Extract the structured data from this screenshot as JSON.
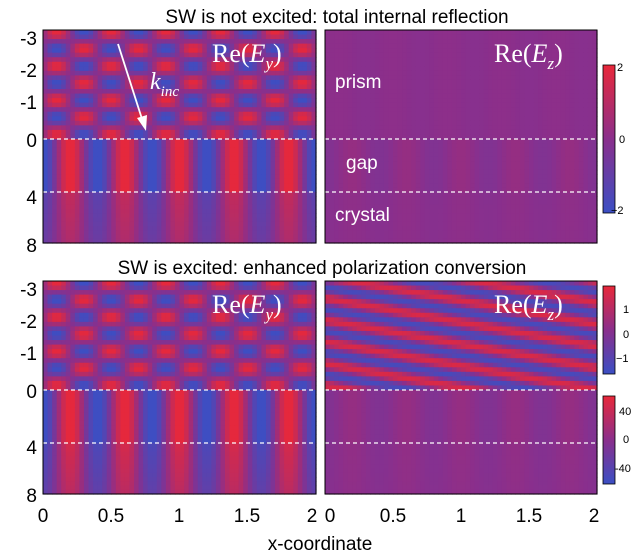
{
  "chart_data": {
    "type": "heatmap",
    "xlabel": "x-coordinate",
    "x_ticks": [
      "0",
      "0.5",
      "1",
      "1.5",
      "2"
    ],
    "y_ticks": [
      "-3",
      "-2",
      "-1",
      "0",
      "4",
      "8"
    ],
    "xlim": [
      0,
      2
    ],
    "ylim": [
      -3,
      8
    ],
    "colormap": [
      "#3b4fc4",
      "#8a2f8c",
      "#e8283a"
    ],
    "rows": [
      {
        "title": "SW is not excited: total internal reflection",
        "panels": [
          {
            "field": "Ey",
            "label_main": "Re(",
            "label_var": "E",
            "label_sub": "y",
            "label_close": ")",
            "annotation": "k",
            "annotation_sub": "inc",
            "prism_pattern": "checkerboard",
            "prism_amplitude": 1.0,
            "gap_amplitude": 1.0,
            "crystal_amplitude": 0.6
          },
          {
            "field": "Ez",
            "label_main": "Re(",
            "label_var": "E",
            "label_sub": "z",
            "label_close": ")",
            "region_labels": [
              "prism",
              "gap",
              "crystal"
            ],
            "prism_pattern": "uniform",
            "prism_amplitude": 0.05,
            "gap_amplitude": 0.12,
            "crystal_amplitude": 0.05
          }
        ],
        "colorbars": [
          {
            "ticks": [
              "2",
              "0",
              "−2"
            ]
          }
        ]
      },
      {
        "title": "SW is excited: enhanced polarization conversion",
        "panels": [
          {
            "field": "Ey",
            "label_main": "Re(",
            "label_var": "E",
            "label_sub": "y",
            "label_close": ")",
            "prism_pattern": "checkerboard",
            "prism_amplitude": 1.0,
            "gap_amplitude": 1.0,
            "crystal_amplitude": 0.8
          },
          {
            "field": "Ez",
            "label_main": "Re(",
            "label_var": "E",
            "label_sub": "z",
            "label_close": ")",
            "prism_pattern": "diagonal",
            "prism_amplitude": 0.85,
            "gap_amplitude": 0.12,
            "crystal_amplitude": 0.08
          }
        ],
        "colorbars": [
          {
            "ticks": [
              "1",
              "0",
              "−1"
            ]
          },
          {
            "ticks": [
              "40",
              "0",
              "-40"
            ]
          }
        ]
      }
    ]
  }
}
